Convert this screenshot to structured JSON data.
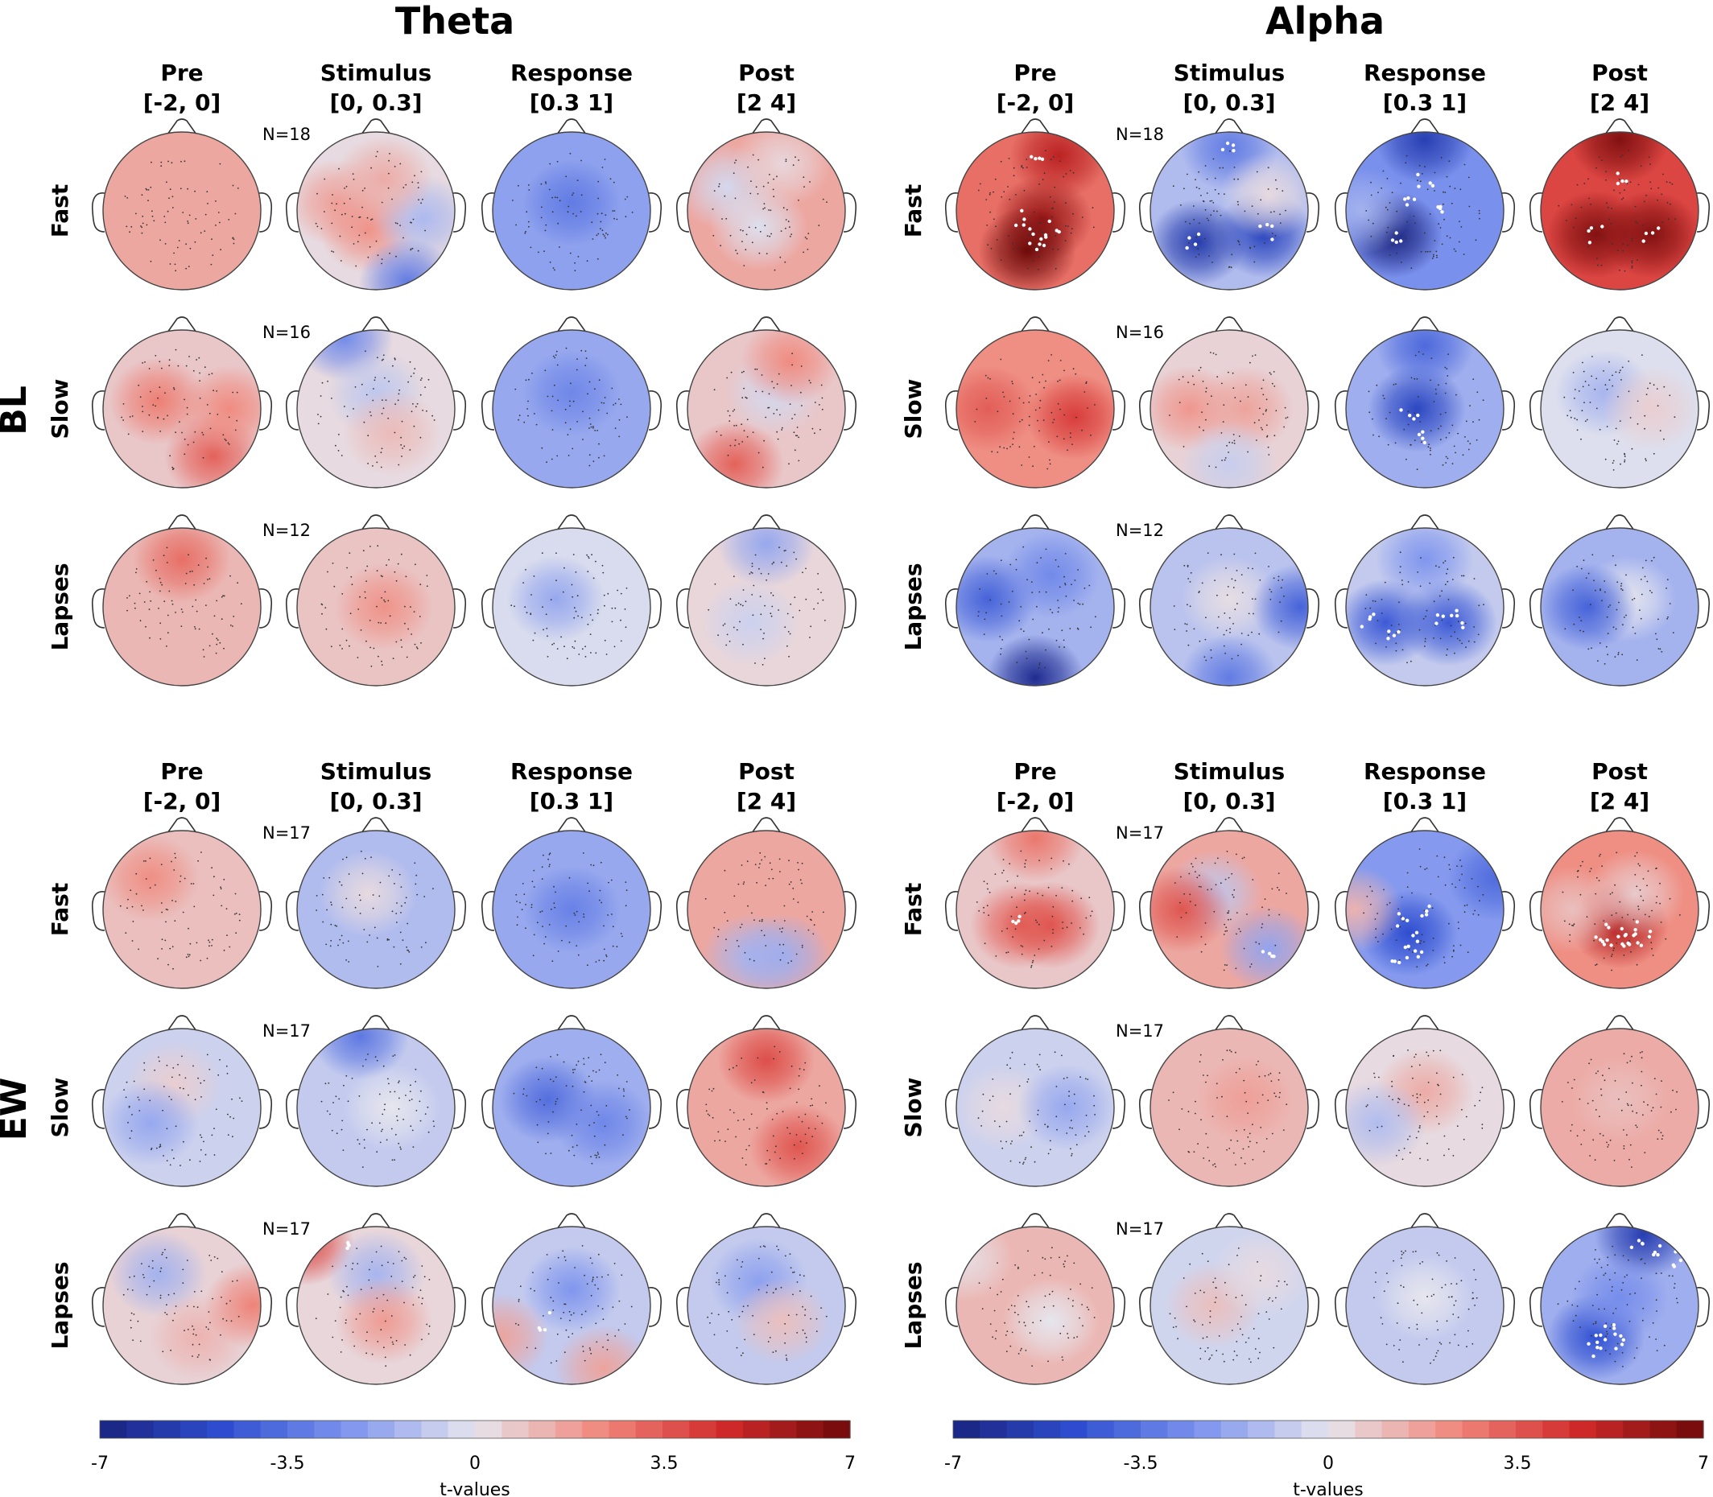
{
  "bands": [
    {
      "title": "Theta"
    },
    {
      "title": "Alpha"
    }
  ],
  "columns": [
    {
      "name": "Pre",
      "window": "[-2, 0]"
    },
    {
      "name": "Stimulus",
      "window": "[0, 0.3]"
    },
    {
      "name": "Response",
      "window": "[0.3 1]"
    },
    {
      "name": "Post",
      "window": "[2 4]"
    }
  ],
  "rows": [
    "Fast",
    "Slow",
    "Lapses"
  ],
  "conditions": [
    {
      "label": "BL",
      "n": [
        "N=18",
        "N=16",
        "N=12"
      ]
    },
    {
      "label": "EW",
      "n": [
        "N=17",
        "N=17",
        "N=17"
      ]
    }
  ],
  "colorbar": {
    "title": "t-values",
    "ticks": [
      "-7",
      "-3.5",
      "0",
      "3.5",
      "7"
    ],
    "range": [
      -7,
      7
    ],
    "levels": 28,
    "colors": [
      "#1a237e",
      "#2f4fd1",
      "#7f95ee",
      "#e6e6ee",
      "#f08a7e",
      "#d22a2a",
      "#6e0a0a"
    ]
  },
  "chart_data": {
    "type": "heatmap",
    "description_units": "t-values",
    "maps": [
      {
        "condition": "BL",
        "band": "Theta",
        "row": "Fast",
        "base": 1.6,
        "blobs": []
      },
      {
        "condition": "BL",
        "band": "Theta",
        "row": "Slow",
        "base": 0.5,
        "blobs": [
          [
            0.3,
            0.6,
            1.5
          ]
        ]
      },
      {
        "condition": "BL",
        "band": "Theta",
        "row": "Lapses",
        "base": 1.0,
        "blobs": []
      },
      {
        "condition": "BL",
        "band": "Alpha",
        "row": "Fast",
        "base": 2.5,
        "blobs": [
          [
            0.45,
            0.7,
            2.5
          ]
        ]
      },
      {
        "condition": "BL",
        "band": "Alpha",
        "row": "Slow",
        "base": 1.2,
        "blobs": []
      },
      {
        "condition": "BL",
        "band": "Alpha",
        "row": "Lapses",
        "base": -1.5,
        "blobs": [
          [
            0.5,
            0.95,
            -2.5
          ]
        ]
      },
      {
        "condition": "EW",
        "band": "Theta",
        "row": "Fast",
        "base": 1.2,
        "blobs": []
      },
      {
        "condition": "EW",
        "band": "Theta",
        "row": "Slow",
        "base": -0.6,
        "blobs": []
      },
      {
        "condition": "EW",
        "band": "Theta",
        "row": "Lapses",
        "base": 1.5,
        "blobs": [
          [
            0.3,
            0.1,
            1.5
          ]
        ]
      },
      {
        "condition": "EW",
        "band": "Alpha",
        "row": "Fast",
        "base": 1.5,
        "blobs": []
      },
      {
        "condition": "EW",
        "band": "Alpha",
        "row": "Slow",
        "base": -0.6,
        "blobs": []
      },
      {
        "condition": "EW",
        "band": "Alpha",
        "row": "Lapses",
        "base": 0.6,
        "blobs": []
      }
    ]
  },
  "topomaps": [
    {
      "base": 1.6,
      "blobs": [],
      "sig": []
    },
    {
      "base": 0.3,
      "blobs": [
        [
          0.25,
          0.45,
          1.5
        ],
        [
          0.45,
          0.62,
          1.8
        ],
        [
          0.8,
          0.55,
          -1.6
        ],
        [
          0.7,
          0.95,
          -3.5
        ],
        [
          0.55,
          0.3,
          1.2
        ]
      ],
      "sig": []
    },
    {
      "base": -2.0,
      "blobs": [
        [
          0.5,
          0.45,
          -1.2
        ]
      ],
      "sig": []
    },
    {
      "base": 1.6,
      "blobs": [
        [
          0.25,
          0.35,
          -2
        ],
        [
          0.45,
          0.6,
          -1.8
        ],
        [
          0.6,
          0.2,
          -1.2
        ]
      ],
      "sig": []
    },
    {
      "base": 3.0,
      "blobs": [
        [
          0.55,
          0.55,
          3.0
        ],
        [
          0.45,
          0.75,
          4.0
        ],
        [
          0.65,
          0.15,
          2.2
        ]
      ],
      "sig": [
        [
          0.5,
          0.2
        ],
        [
          0.42,
          0.55
        ],
        [
          0.5,
          0.65
        ],
        [
          0.55,
          0.72
        ],
        [
          0.62,
          0.62
        ]
      ]
    },
    {
      "base": -1.2,
      "blobs": [
        [
          0.3,
          0.7,
          -4.5
        ],
        [
          0.72,
          0.65,
          -4
        ],
        [
          0.5,
          0.1,
          -2
        ],
        [
          0.75,
          0.4,
          1.5
        ]
      ],
      "sig": [
        [
          0.28,
          0.68
        ],
        [
          0.72,
          0.64
        ],
        [
          0.5,
          0.12
        ]
      ]
    },
    {
      "base": -2.5,
      "blobs": [
        [
          0.3,
          0.65,
          -4.5
        ],
        [
          0.5,
          0.05,
          -3
        ],
        [
          0.1,
          0.5,
          1
        ]
      ],
      "sig": [
        [
          0.3,
          0.65
        ],
        [
          0.5,
          0.3
        ],
        [
          0.6,
          0.5
        ],
        [
          0.4,
          0.45
        ]
      ]
    },
    {
      "base": 4.0,
      "blobs": [
        [
          0.5,
          0.05,
          2.5
        ],
        [
          0.35,
          0.65,
          2.5
        ],
        [
          0.7,
          0.65,
          2.5
        ]
      ],
      "sig": [
        [
          0.35,
          0.65
        ],
        [
          0.7,
          0.65
        ],
        [
          0.5,
          0.3
        ]
      ]
    },
    {
      "base": 0.8,
      "blobs": [
        [
          0.35,
          0.45,
          1.8
        ],
        [
          0.7,
          0.8,
          2.5
        ],
        [
          0.8,
          0.5,
          1.5
        ]
      ],
      "sig": []
    },
    {
      "base": 0.3,
      "blobs": [
        [
          0.3,
          0.05,
          -3
        ],
        [
          0.5,
          0.4,
          -1.2
        ],
        [
          0.6,
          0.65,
          0.8
        ]
      ],
      "sig": []
    },
    {
      "base": -1.8,
      "blobs": [
        [
          0.5,
          0.4,
          -1
        ]
      ],
      "sig": []
    },
    {
      "base": 0.8,
      "blobs": [
        [
          0.3,
          0.85,
          2.5
        ],
        [
          0.55,
          0.4,
          -1.2
        ],
        [
          0.65,
          0.2,
          1.5
        ]
      ],
      "sig": []
    },
    {
      "base": 2.2,
      "blobs": [
        [
          0.2,
          0.5,
          1.2
        ],
        [
          0.75,
          0.55,
          2
        ]
      ],
      "sig": []
    },
    {
      "base": 0.5,
      "blobs": [
        [
          0.25,
          0.5,
          1.5
        ],
        [
          0.6,
          0.5,
          1.2
        ],
        [
          0.5,
          0.85,
          -1.2
        ]
      ],
      "sig": []
    },
    {
      "base": -1.6,
      "blobs": [
        [
          0.45,
          0.5,
          -3.5
        ],
        [
          0.5,
          0.1,
          -2.2
        ]
      ],
      "sig": [
        [
          0.4,
          0.55
        ],
        [
          0.5,
          0.7
        ]
      ]
    },
    {
      "base": -0.2,
      "blobs": [
        [
          0.4,
          0.4,
          -1.2
        ],
        [
          0.7,
          0.5,
          0.8
        ]
      ],
      "sig": []
    },
    {
      "base": 1.2,
      "blobs": [
        [
          0.5,
          0.2,
          1.8
        ]
      ],
      "sig": []
    },
    {
      "base": 0.9,
      "blobs": [
        [
          0.55,
          0.5,
          1.2
        ]
      ],
      "sig": []
    },
    {
      "base": -0.3,
      "blobs": [
        [
          0.4,
          0.45,
          -1.5
        ]
      ],
      "sig": []
    },
    {
      "base": 0.4,
      "blobs": [
        [
          0.5,
          0.1,
          -2.2
        ],
        [
          0.4,
          0.6,
          -1
        ]
      ],
      "sig": []
    },
    {
      "base": -1.5,
      "blobs": [
        [
          0.2,
          0.45,
          -2.5
        ],
        [
          0.5,
          0.95,
          -5
        ],
        [
          0.6,
          0.3,
          -1.2
        ]
      ],
      "sig": []
    },
    {
      "base": -1.0,
      "blobs": [
        [
          0.5,
          0.45,
          1.2
        ],
        [
          0.95,
          0.5,
          -3
        ],
        [
          0.5,
          0.95,
          -2.2
        ]
      ],
      "sig": []
    },
    {
      "base": -0.8,
      "blobs": [
        [
          0.25,
          0.6,
          -3.5
        ],
        [
          0.65,
          0.6,
          -3.5
        ],
        [
          0.5,
          0.2,
          -1.5
        ]
      ],
      "sig": [
        [
          0.15,
          0.58
        ],
        [
          0.3,
          0.66
        ],
        [
          0.62,
          0.6
        ],
        [
          0.69,
          0.58
        ]
      ]
    },
    {
      "base": -1.5,
      "blobs": [
        [
          0.55,
          0.45,
          1.5
        ],
        [
          0.3,
          0.5,
          -2.5
        ]
      ],
      "sig": []
    },
    {
      "base": 1.0,
      "blobs": [
        [
          0.3,
          0.3,
          1.2
        ]
      ],
      "sig": []
    },
    {
      "base": -1.2,
      "blobs": [
        [
          0.45,
          0.4,
          1.5
        ]
      ],
      "sig": []
    },
    {
      "base": -1.8,
      "blobs": [
        [
          0.5,
          0.5,
          -1.2
        ]
      ],
      "sig": []
    },
    {
      "base": 1.6,
      "blobs": [
        [
          0.4,
          0.8,
          -3
        ],
        [
          0.6,
          0.8,
          -3.2
        ]
      ],
      "sig": []
    },
    {
      "base": 0.8,
      "blobs": [
        [
          0.4,
          0.6,
          2.5
        ],
        [
          0.6,
          0.6,
          2.8
        ],
        [
          0.5,
          0.05,
          2
        ]
      ],
      "sig": [
        [
          0.4,
          0.6
        ]
      ]
    },
    {
      "base": 1.6,
      "blobs": [
        [
          0.4,
          0.4,
          -2.5
        ],
        [
          0.75,
          0.75,
          -3.5
        ],
        [
          0.2,
          0.5,
          2
        ]
      ],
      "sig": [
        [
          0.75,
          0.75
        ]
      ]
    },
    {
      "base": -2.2,
      "blobs": [
        [
          0.4,
          0.65,
          -2.5
        ],
        [
          0.05,
          0.5,
          3.5
        ],
        [
          0.95,
          0.3,
          -1.5
        ]
      ],
      "sig": [
        [
          0.35,
          0.55
        ],
        [
          0.4,
          0.7
        ],
        [
          0.45,
          0.75
        ],
        [
          0.35,
          0.8
        ],
        [
          0.5,
          0.5
        ]
      ]
    },
    {
      "base": 2.2,
      "blobs": [
        [
          0.5,
          0.6,
          3.2
        ],
        [
          0.2,
          0.5,
          -1.2
        ],
        [
          0.6,
          0.4,
          -1.5
        ]
      ],
      "sig": [
        [
          0.4,
          0.7
        ],
        [
          0.5,
          0.72
        ],
        [
          0.6,
          0.7
        ],
        [
          0.55,
          0.65
        ],
        [
          0.45,
          0.65
        ],
        [
          0.65,
          0.63
        ]
      ]
    },
    {
      "base": -0.6,
      "blobs": [
        [
          0.45,
          0.35,
          1.2
        ],
        [
          0.3,
          0.6,
          -1.2
        ]
      ],
      "sig": []
    },
    {
      "base": -0.8,
      "blobs": [
        [
          0.4,
          0.05,
          -2.5
        ],
        [
          0.6,
          0.5,
          0.8
        ]
      ],
      "sig": []
    },
    {
      "base": -1.6,
      "blobs": [
        [
          0.35,
          0.45,
          -2
        ],
        [
          0.7,
          0.6,
          -1.2
        ]
      ],
      "sig": []
    },
    {
      "base": 1.6,
      "blobs": [
        [
          0.5,
          0.2,
          2.2
        ],
        [
          0.7,
          0.75,
          2
        ]
      ],
      "sig": []
    },
    {
      "base": -0.6,
      "blobs": [
        [
          0.3,
          0.5,
          0.9
        ],
        [
          0.7,
          0.5,
          -1.2
        ]
      ],
      "sig": []
    },
    {
      "base": 1.2,
      "blobs": [
        [
          0.6,
          0.45,
          0.6
        ]
      ],
      "sig": []
    },
    {
      "base": 0.3,
      "blobs": [
        [
          0.5,
          0.4,
          1.2
        ],
        [
          0.2,
          0.6,
          -1.5
        ]
      ],
      "sig": []
    },
    {
      "base": 1.5,
      "blobs": [
        [
          0.5,
          0.45,
          -0.5
        ]
      ],
      "sig": []
    },
    {
      "base": 0.5,
      "blobs": [
        [
          0.35,
          0.3,
          -2
        ],
        [
          0.6,
          0.7,
          0.8
        ],
        [
          0.95,
          0.5,
          2
        ]
      ],
      "sig": []
    },
    {
      "base": 0.4,
      "blobs": [
        [
          0.05,
          0.1,
          3.5
        ],
        [
          0.5,
          0.3,
          -1.8
        ],
        [
          0.55,
          0.6,
          1.5
        ]
      ],
      "sig": [
        [
          0.35,
          0.12
        ]
      ]
    },
    {
      "base": -0.8,
      "blobs": [
        [
          0.5,
          0.4,
          -1.5
        ],
        [
          0.05,
          0.7,
          2.5
        ],
        [
          0.7,
          0.9,
          2.5
        ]
      ],
      "sig": [
        [
          0.35,
          0.6
        ]
      ]
    },
    {
      "base": -0.8,
      "blobs": [
        [
          0.45,
          0.35,
          -1.2
        ],
        [
          0.6,
          0.6,
          1.8
        ]
      ],
      "sig": []
    },
    {
      "base": 1.2,
      "blobs": [
        [
          0.6,
          0.6,
          -1.2
        ],
        [
          0.05,
          0.2,
          -1
        ]
      ],
      "sig": []
    },
    {
      "base": -0.5,
      "blobs": [
        [
          0.4,
          0.5,
          1.5
        ],
        [
          0.7,
          0.3,
          0.8
        ]
      ],
      "sig": []
    },
    {
      "base": -0.8,
      "blobs": [
        [
          0.5,
          0.45,
          0.8
        ]
      ],
      "sig": []
    },
    {
      "base": -1.6,
      "blobs": [
        [
          0.65,
          0.05,
          -4
        ],
        [
          0.35,
          0.7,
          -3
        ],
        [
          0.5,
          0.45,
          -1
        ]
      ],
      "sig": [
        [
          0.6,
          0.12
        ],
        [
          0.75,
          0.15
        ],
        [
          0.85,
          0.2
        ],
        [
          0.4,
          0.7
        ],
        [
          0.5,
          0.72
        ],
        [
          0.45,
          0.65
        ],
        [
          0.35,
          0.77
        ]
      ]
    }
  ]
}
